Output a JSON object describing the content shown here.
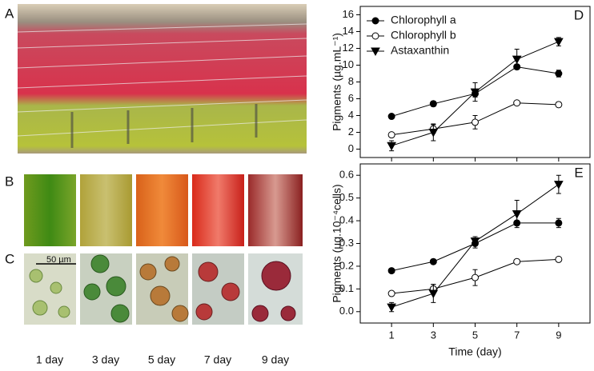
{
  "panels": {
    "labels": [
      "A",
      "B",
      "C"
    ],
    "scale_bar": "50 µm",
    "days": [
      "1 day",
      "3 day",
      "5 day",
      "7 day",
      "9 day"
    ]
  },
  "chart_data": [
    {
      "type": "line",
      "panel_label": "D",
      "ylabel": "Pigments (µg.mL⁻¹)",
      "x": [
        1,
        3,
        5,
        7,
        9
      ],
      "xlim": [
        -0.5,
        10.5
      ],
      "xticks": [
        1,
        3,
        5,
        7,
        9
      ],
      "ylim": [
        -1,
        17
      ],
      "yticks": [
        0,
        2,
        4,
        6,
        8,
        10,
        12,
        14,
        16
      ],
      "legend": "upper left",
      "series": [
        {
          "name": "Chlorophyll a",
          "color": "#000000",
          "marker": "circle",
          "values": [
            3.9,
            5.4,
            6.6,
            9.8,
            9.0
          ],
          "errors": [
            0.2,
            0.3,
            0.4,
            0.2,
            0.4
          ]
        },
        {
          "name": "Chlorophyll b",
          "color": "#000000",
          "marker": "circle-open",
          "values": [
            1.7,
            2.4,
            3.2,
            5.5,
            5.3
          ],
          "errors": [
            0.2,
            0.5,
            0.8,
            0.2,
            0.3
          ]
        },
        {
          "name": "Astaxanthin",
          "color": "#000000",
          "marker": "triangle-down",
          "values": [
            0.4,
            2.0,
            6.8,
            10.7,
            12.8
          ],
          "errors": [
            0.6,
            1.0,
            1.1,
            1.2,
            0.5
          ]
        }
      ]
    },
    {
      "type": "line",
      "panel_label": "E",
      "ylabel": "Pigments (µg.10⁻⁴cells)",
      "xlabel": "Time (day)",
      "x": [
        1,
        3,
        5,
        7,
        9
      ],
      "xlim": [
        -0.5,
        10.5
      ],
      "xticks": [
        1,
        3,
        5,
        7,
        9
      ],
      "ylim": [
        -0.05,
        0.65
      ],
      "yticks": [
        {
          "value": 0,
          "label": "0.0"
        },
        0.1,
        0.2,
        0.3,
        0.4,
        0.5,
        0.6
      ],
      "series": [
        {
          "name": "Chlorophyll a",
          "color": "#000000",
          "marker": "circle",
          "values": [
            0.18,
            0.22,
            0.3,
            0.39,
            0.39
          ],
          "errors": [
            0.005,
            0.01,
            0.02,
            0.01,
            0.02
          ]
        },
        {
          "name": "Chlorophyll b",
          "color": "#000000",
          "marker": "circle-open",
          "values": [
            0.08,
            0.1,
            0.15,
            0.22,
            0.23
          ],
          "errors": [
            0.005,
            0.02,
            0.035,
            0.005,
            0.01
          ]
        },
        {
          "name": "Astaxanthin",
          "color": "#000000",
          "marker": "triangle-down",
          "values": [
            0.02,
            0.08,
            0.31,
            0.43,
            0.56
          ],
          "errors": [
            0.02,
            0.04,
            0.02,
            0.06,
            0.04
          ]
        }
      ]
    }
  ]
}
